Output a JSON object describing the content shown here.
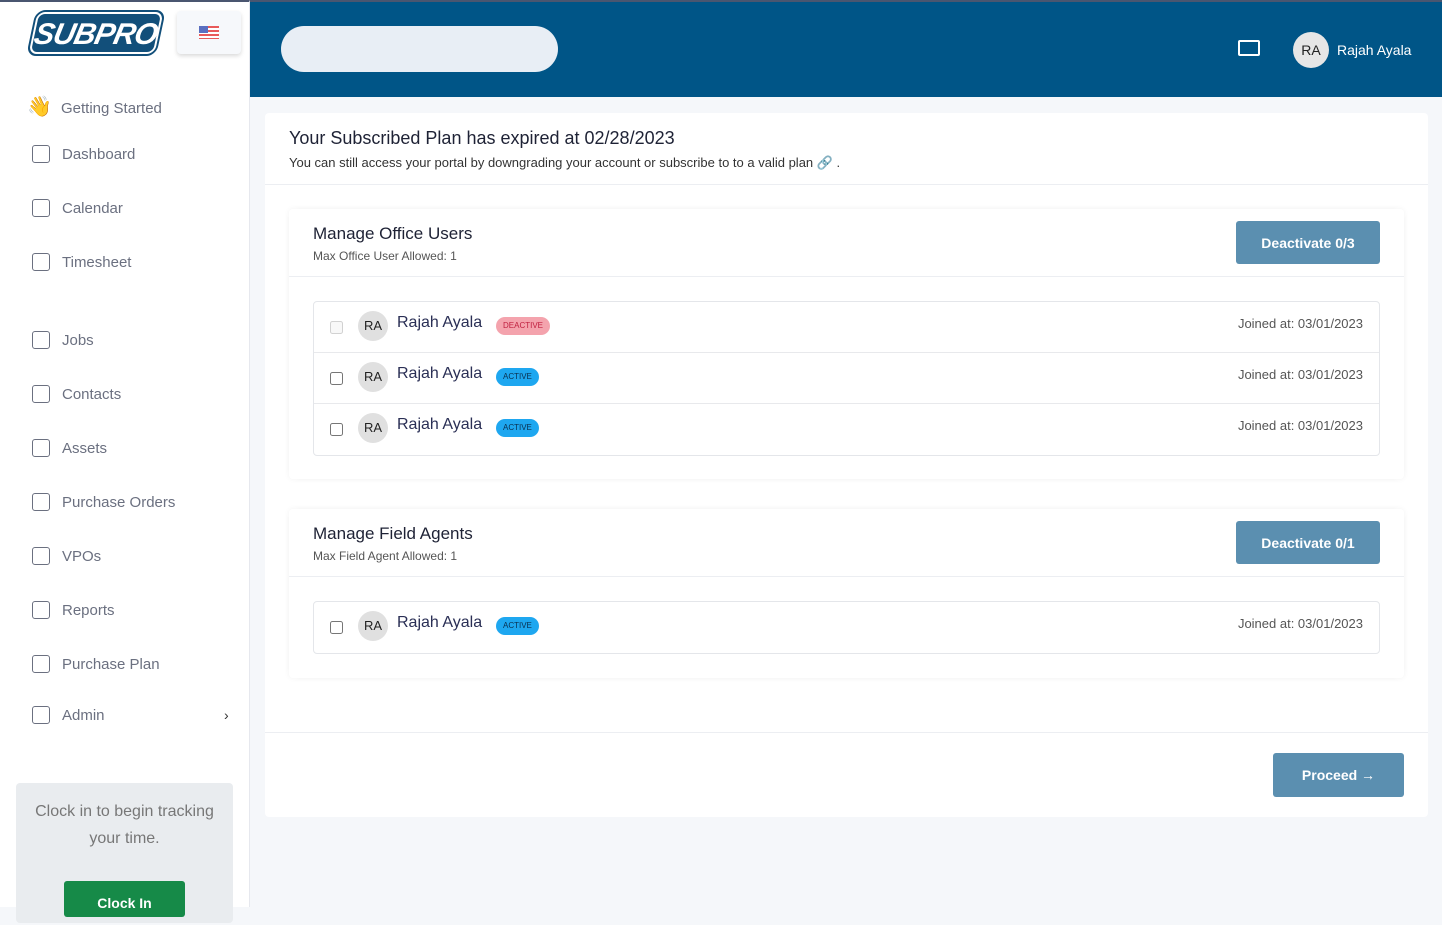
{
  "brand": {
    "logo": "SUBPRO"
  },
  "sidebar": {
    "items": [
      {
        "label": "Getting Started",
        "icon": "waving-hand-icon"
      },
      {
        "label": "Dashboard",
        "icon": "dashboard-icon"
      },
      {
        "label": "Calendar",
        "icon": "calendar-icon"
      },
      {
        "label": "Timesheet",
        "icon": "clock-icon"
      },
      {
        "label": "Jobs",
        "icon": "layers-icon"
      },
      {
        "label": "Contacts",
        "icon": "contacts-icon"
      },
      {
        "label": "Assets",
        "icon": "hammer-icon"
      },
      {
        "label": "Purchase Orders",
        "icon": "document-icon"
      },
      {
        "label": "VPOs",
        "icon": "document-icon"
      },
      {
        "label": "Reports",
        "icon": "chart-icon"
      },
      {
        "label": "Purchase Plan",
        "icon": "document-icon"
      },
      {
        "label": "Admin",
        "icon": "user-lock-icon"
      }
    ],
    "clock_text": "Clock in to begin tracking your time.",
    "clock_button": "Clock In"
  },
  "header": {
    "user_initials": "RA",
    "user_name": "Rajah Ayala"
  },
  "notice": {
    "title": "Your Subscribed Plan has expired at 02/28/2023",
    "subtitle": "You can still access your portal by downgrading your account or subscribe to to a valid plan 🔗 ."
  },
  "office": {
    "title": "Manage Office Users",
    "sub": "Max Office User Allowed: 1",
    "button": "Deactivate 0/3",
    "users": [
      {
        "initials": "RA",
        "name": "Rajah Ayala",
        "status": "DEACTIVE",
        "joined": "Joined at: 03/01/2023"
      },
      {
        "initials": "RA",
        "name": "Rajah Ayala",
        "status": "ACTIVE",
        "joined": "Joined at: 03/01/2023"
      },
      {
        "initials": "RA",
        "name": "Rajah Ayala",
        "status": "ACTIVE",
        "joined": "Joined at: 03/01/2023"
      }
    ]
  },
  "field": {
    "title": "Manage Field Agents",
    "sub": "Max Field Agent Allowed: 1",
    "button": "Deactivate 0/1",
    "users": [
      {
        "initials": "RA",
        "name": "Rajah Ayala",
        "status": "ACTIVE",
        "joined": "Joined at: 03/01/2023"
      }
    ]
  },
  "proceed": "Proceed →"
}
